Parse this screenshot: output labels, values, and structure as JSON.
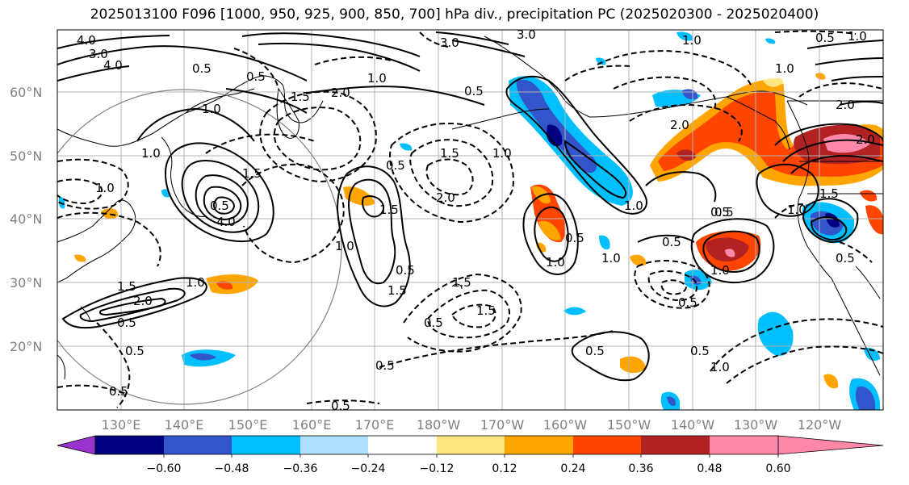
{
  "title": "2025013100 F096 [1000, 950, 925, 900, 850, 700] hPa div., precipitation PC (2025020300 - 2025020400)",
  "map": {
    "lat_labels": [
      "20°N",
      "30°N",
      "40°N",
      "50°N",
      "60°N"
    ],
    "lon_labels": [
      "130°E",
      "140°E",
      "150°E",
      "160°E",
      "170°E",
      "180°W",
      "170°W",
      "160°W",
      "150°W",
      "140°W",
      "130°W",
      "120°W"
    ],
    "contour_labels": [
      {
        "text": "4.0"
      },
      {
        "text": "3.0"
      },
      {
        "text": "4.0"
      },
      {
        "text": "3.0"
      },
      {
        "text": "3.0"
      },
      {
        "text": "1.0"
      },
      {
        "text": "0.5"
      },
      {
        "text": "0.5"
      },
      {
        "text": "1.5"
      },
      {
        "text": "2.0"
      },
      {
        "text": "1.0"
      },
      {
        "text": "0.5"
      },
      {
        "text": "1.0"
      },
      {
        "text": "1.5"
      },
      {
        "text": "2.0"
      },
      {
        "text": "1.0"
      },
      {
        "text": "0.5"
      },
      {
        "text": "2.0"
      },
      {
        "text": "1.5"
      },
      {
        "text": "1.0"
      },
      {
        "text": "4.0"
      },
      {
        "text": "0.5"
      },
      {
        "text": "1.0"
      },
      {
        "text": "1.5"
      },
      {
        "text": "2.0"
      },
      {
        "text": "0.5"
      },
      {
        "text": "1.0"
      },
      {
        "text": "0.5"
      },
      {
        "text": "1.5"
      },
      {
        "text": "1.0"
      },
      {
        "text": "1.5"
      },
      {
        "text": "0.5"
      },
      {
        "text": "1.5"
      },
      {
        "text": "0.5"
      },
      {
        "text": "1.0"
      },
      {
        "text": "0.5"
      },
      {
        "text": "1.0"
      },
      {
        "text": "1.0"
      },
      {
        "text": "0.5"
      },
      {
        "text": "0.5"
      },
      {
        "text": "0.5"
      },
      {
        "text": "0.5"
      },
      {
        "text": "1.0"
      },
      {
        "text": "0.5"
      },
      {
        "text": "0.5"
      },
      {
        "text": "0.5"
      },
      {
        "text": "1.0"
      },
      {
        "text": "2.0"
      },
      {
        "text": "1.0"
      },
      {
        "text": "1.5"
      },
      {
        "text": "0.5"
      },
      {
        "text": "1.5"
      },
      {
        "text": "2.0"
      },
      {
        "text": "1.0"
      },
      {
        "text": "0.5"
      },
      {
        "text": "1.0"
      },
      {
        "text": "0.5"
      },
      {
        "text": "0.5"
      }
    ]
  },
  "colorbar": {
    "ticks": [
      "−0.60",
      "−0.48",
      "−0.36",
      "−0.24",
      "−0.12",
      "0.12",
      "0.24",
      "0.36",
      "0.48",
      "0.60"
    ],
    "colors": [
      "#9933cc",
      "#000080",
      "#3355cc",
      "#00bfff",
      "#b0e0ff",
      "#ffffff",
      "#ffe680",
      "#ffa500",
      "#ff4500",
      "#b22222",
      "#ff88aa"
    ]
  }
}
